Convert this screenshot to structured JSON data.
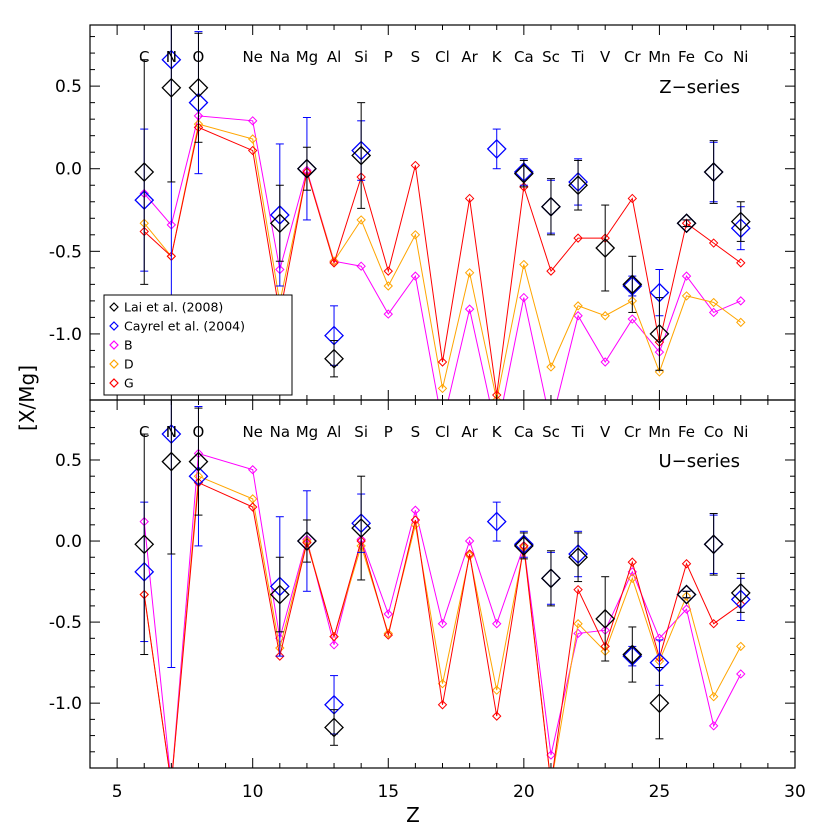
{
  "chart_data": {
    "type": "scatter",
    "xlabel": "Z",
    "ylabel": "[X/Mg]",
    "xlim": [
      4,
      30
    ],
    "ylim": [
      -1.4,
      0.87
    ],
    "x_ticks": [
      5,
      10,
      15,
      20,
      25,
      30
    ],
    "y_ticks": [
      -1.0,
      -0.5,
      0.0,
      0.5
    ],
    "y_tick_labels": [
      "-1.0",
      "-0.5",
      "0.0",
      "0.5"
    ],
    "elements": [
      {
        "z": 6,
        "symbol": "C"
      },
      {
        "z": 7,
        "symbol": "N"
      },
      {
        "z": 8,
        "symbol": "O"
      },
      {
        "z": 10,
        "symbol": "Ne"
      },
      {
        "z": 11,
        "symbol": "Na"
      },
      {
        "z": 12,
        "symbol": "Mg"
      },
      {
        "z": 13,
        "symbol": "Al"
      },
      {
        "z": 14,
        "symbol": "Si"
      },
      {
        "z": 15,
        "symbol": "P"
      },
      {
        "z": 16,
        "symbol": "S"
      },
      {
        "z": 17,
        "symbol": "Cl"
      },
      {
        "z": 18,
        "symbol": "Ar"
      },
      {
        "z": 19,
        "symbol": "K"
      },
      {
        "z": 20,
        "symbol": "Ca"
      },
      {
        "z": 21,
        "symbol": "Sc"
      },
      {
        "z": 22,
        "symbol": "Ti"
      },
      {
        "z": 23,
        "symbol": "V"
      },
      {
        "z": 24,
        "symbol": "Cr"
      },
      {
        "z": 25,
        "symbol": "Mn"
      },
      {
        "z": 26,
        "symbol": "Fe"
      },
      {
        "z": 27,
        "symbol": "Co"
      },
      {
        "z": 28,
        "symbol": "Ni"
      }
    ],
    "colors": {
      "lai": "#000000",
      "cayrel": "#0000ff",
      "B": "#ff00ff",
      "D": "#ffa500",
      "G": "#ff0000"
    },
    "legend": {
      "placement": "lower-left of top panel",
      "entries": [
        {
          "key": "lai",
          "label": "Lai et al. (2008)"
        },
        {
          "key": "cayrel",
          "label": "Cayrel et al. (2004)"
        },
        {
          "key": "B",
          "label": "B"
        },
        {
          "key": "D",
          "label": "D"
        },
        {
          "key": "G",
          "label": "G"
        }
      ]
    },
    "observations": {
      "lai": [
        {
          "z": 6,
          "y": -0.02,
          "err": 0.68
        },
        {
          "z": 7,
          "y": 0.49,
          "err": 0.57
        },
        {
          "z": 8,
          "y": 0.49,
          "err": 0.33
        },
        {
          "z": 11,
          "y": -0.33,
          "err": 0.23
        },
        {
          "z": 12,
          "y": 0.0,
          "err": 0.13
        },
        {
          "z": 13,
          "y": -1.15,
          "err": 0.11
        },
        {
          "z": 14,
          "y": 0.08,
          "err": 0.32
        },
        {
          "z": 20,
          "y": -0.03,
          "err": 0.08
        },
        {
          "z": 21,
          "y": -0.23,
          "err": 0.17
        },
        {
          "z": 22,
          "y": -0.1,
          "err": 0.15
        },
        {
          "z": 23,
          "y": -0.48,
          "err": 0.26
        },
        {
          "z": 24,
          "y": -0.7,
          "err": 0.17
        },
        {
          "z": 25,
          "y": -1.0,
          "err": 0.22
        },
        {
          "z": 26,
          "y": -0.33,
          "err": 0.02
        },
        {
          "z": 27,
          "y": -0.02,
          "err": 0.19
        },
        {
          "z": 28,
          "y": -0.32,
          "err": 0.12
        }
      ],
      "cayrel": [
        {
          "z": 6,
          "y": -0.19,
          "err": 0.43
        },
        {
          "z": 7,
          "y": 0.66,
          "err": 1.44
        },
        {
          "z": 8,
          "y": 0.4,
          "err": 0.43
        },
        {
          "z": 11,
          "y": -0.28,
          "err": 0.43
        },
        {
          "z": 12,
          "y": 0.0,
          "err": 0.31
        },
        {
          "z": 13,
          "y": -1.01,
          "err": 0.18
        },
        {
          "z": 14,
          "y": 0.11,
          "err": 0.18
        },
        {
          "z": 19,
          "y": 0.12,
          "err": 0.12
        },
        {
          "z": 20,
          "y": -0.02,
          "err": 0.08
        },
        {
          "z": 21,
          "y": -0.23,
          "err": 0.16
        },
        {
          "z": 22,
          "y": -0.08,
          "err": 0.14
        },
        {
          "z": 24,
          "y": -0.71,
          "err": 0.06
        },
        {
          "z": 25,
          "y": -0.75,
          "err": 0.14
        },
        {
          "z": 26,
          "y": -0.33,
          "err": 0.02
        },
        {
          "z": 27,
          "y": -0.02,
          "err": 0.18
        },
        {
          "z": 28,
          "y": -0.36,
          "err": 0.13
        }
      ]
    },
    "panels": [
      {
        "title": "Z−series",
        "models": {
          "B": [
            [
              6,
              -0.15
            ],
            [
              7,
              -0.34
            ],
            [
              8,
              0.32
            ],
            [
              10,
              0.29
            ],
            [
              11,
              -0.61
            ],
            [
              12,
              -0.01
            ],
            [
              13,
              -0.56
            ],
            [
              14,
              -0.59
            ],
            [
              15,
              -0.88
            ],
            [
              16,
              -0.65
            ],
            [
              17,
              -1.55
            ],
            [
              18,
              -0.85
            ],
            [
              19,
              -1.6
            ],
            [
              20,
              -0.78
            ],
            [
              21,
              -1.55
            ],
            [
              22,
              -0.89
            ],
            [
              23,
              -1.17
            ],
            [
              24,
              -0.91
            ],
            [
              25,
              -1.11
            ],
            [
              26,
              -0.65
            ],
            [
              27,
              -0.87
            ],
            [
              28,
              -0.8
            ]
          ],
          "D": [
            [
              6,
              -0.33
            ],
            [
              7,
              -0.53
            ],
            [
              8,
              0.27
            ],
            [
              10,
              0.18
            ],
            [
              11,
              -0.81
            ],
            [
              12,
              -0.02
            ],
            [
              13,
              -0.56
            ],
            [
              14,
              -0.31
            ],
            [
              15,
              -0.71
            ],
            [
              16,
              -0.4
            ],
            [
              17,
              -1.33
            ],
            [
              18,
              -0.63
            ],
            [
              19,
              -1.4
            ],
            [
              20,
              -0.58
            ],
            [
              21,
              -1.2
            ],
            [
              22,
              -0.83
            ],
            [
              23,
              -0.89
            ],
            [
              24,
              -0.8
            ],
            [
              25,
              -1.23
            ],
            [
              26,
              -0.77
            ],
            [
              27,
              -0.81
            ],
            [
              28,
              -0.93
            ]
          ],
          "G": [
            [
              6,
              -0.38
            ],
            [
              7,
              -0.53
            ],
            [
              8,
              0.25
            ],
            [
              10,
              0.11
            ],
            [
              11,
              -0.88
            ],
            [
              12,
              -0.02
            ],
            [
              13,
              -0.57
            ],
            [
              14,
              -0.05
            ],
            [
              15,
              -0.62
            ],
            [
              16,
              0.02
            ],
            [
              17,
              -1.17
            ],
            [
              18,
              -0.18
            ],
            [
              19,
              -1.37
            ],
            [
              20,
              -0.11
            ],
            [
              21,
              -0.62
            ],
            [
              22,
              -0.42
            ],
            [
              23,
              -0.42
            ],
            [
              24,
              -0.18
            ],
            [
              25,
              -1.05
            ],
            [
              26,
              -0.33
            ],
            [
              27,
              -0.45
            ],
            [
              28,
              -0.57
            ]
          ]
        }
      },
      {
        "title": "U−series",
        "models": {
          "B": [
            [
              6,
              0.12
            ],
            [
              7,
              -1.5
            ],
            [
              8,
              0.54
            ],
            [
              10,
              0.44
            ],
            [
              11,
              -0.6
            ],
            [
              12,
              0.01
            ],
            [
              13,
              -0.64
            ],
            [
              14,
              0.01
            ],
            [
              15,
              -0.45
            ],
            [
              16,
              0.19
            ],
            [
              17,
              -0.51
            ],
            [
              18,
              0.0
            ],
            [
              19,
              -0.51
            ],
            [
              20,
              -0.03
            ],
            [
              21,
              -1.32
            ],
            [
              22,
              -0.57
            ],
            [
              23,
              -0.55
            ],
            [
              24,
              -0.19
            ],
            [
              25,
              -0.6
            ],
            [
              26,
              -0.42
            ],
            [
              27,
              -1.14
            ],
            [
              28,
              -0.82
            ]
          ],
          "D": [
            [
              6,
              -0.33
            ],
            [
              7,
              -1.5
            ],
            [
              8,
              0.4
            ],
            [
              10,
              0.26
            ],
            [
              11,
              -0.66
            ],
            [
              12,
              0.0
            ],
            [
              13,
              -0.59
            ],
            [
              14,
              -0.03
            ],
            [
              15,
              -0.57
            ],
            [
              16,
              0.1
            ],
            [
              17,
              -0.88
            ],
            [
              18,
              -0.09
            ],
            [
              19,
              -0.92
            ],
            [
              20,
              -0.04
            ],
            [
              21,
              -1.5
            ],
            [
              22,
              -0.51
            ],
            [
              23,
              -0.68
            ],
            [
              24,
              -0.23
            ],
            [
              25,
              -0.74
            ],
            [
              26,
              -0.34
            ],
            [
              27,
              -0.96
            ],
            [
              28,
              -0.65
            ]
          ],
          "G": [
            [
              6,
              -0.33
            ],
            [
              7,
              -1.5
            ],
            [
              8,
              0.36
            ],
            [
              10,
              0.21
            ],
            [
              11,
              -0.71
            ],
            [
              12,
              -0.01
            ],
            [
              13,
              -0.59
            ],
            [
              14,
              0.0
            ],
            [
              15,
              -0.58
            ],
            [
              16,
              0.13
            ],
            [
              17,
              -1.01
            ],
            [
              18,
              -0.08
            ],
            [
              19,
              -1.08
            ],
            [
              20,
              -0.03
            ],
            [
              21,
              -1.5
            ],
            [
              22,
              -0.3
            ],
            [
              23,
              -0.65
            ],
            [
              24,
              -0.13
            ],
            [
              25,
              -0.72
            ],
            [
              26,
              -0.14
            ],
            [
              27,
              -0.51
            ],
            [
              28,
              -0.39
            ]
          ]
        }
      }
    ]
  }
}
